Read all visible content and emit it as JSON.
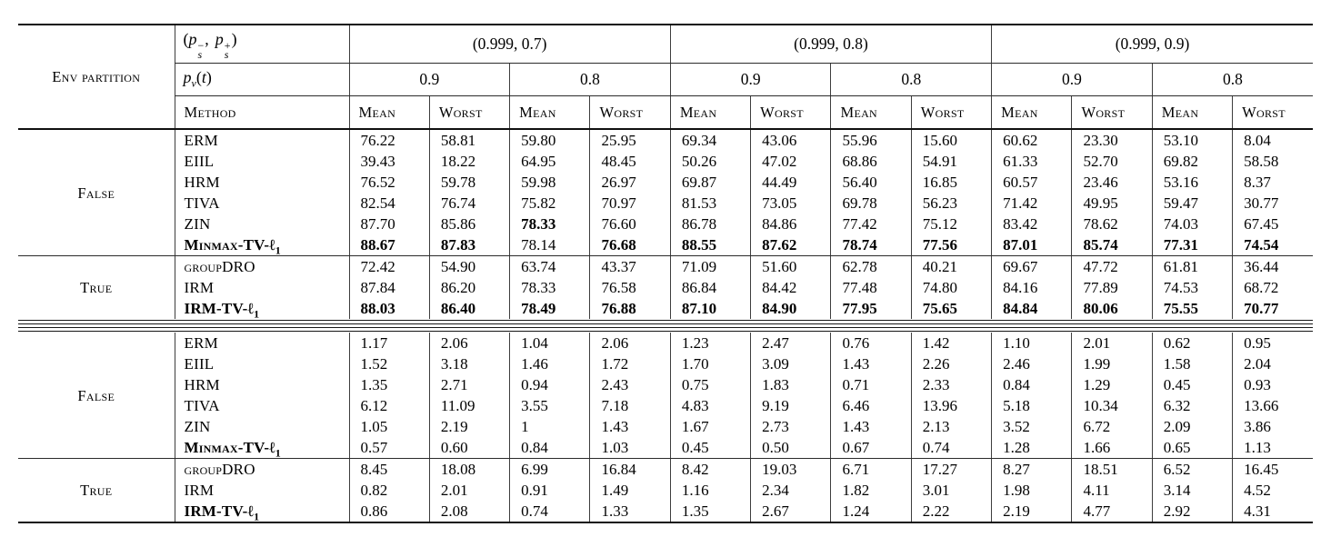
{
  "colors": {
    "text": "#000000",
    "rule": "#111111",
    "background": "#ffffff"
  },
  "table": {
    "header": {
      "env_partition_label": "Env partition",
      "ps": {
        "open": "(",
        "p": "p",
        "s": "s",
        "minus": "−",
        "plus": "+",
        "comma": ",",
        "close": ")"
      },
      "pv": {
        "p": "p",
        "v": "v",
        "open": "(",
        "t": "t",
        "close": ")"
      },
      "group_labels": [
        "(0.999, 0.7)",
        "(0.999, 0.8)",
        "(0.999, 0.9)"
      ],
      "pv_values": [
        "0.9",
        "0.8",
        "0.9",
        "0.8",
        "0.9",
        "0.8"
      ],
      "method_label": "Method",
      "metrics": [
        "Mean",
        "Worst",
        "Mean",
        "Worst",
        "Mean",
        "Worst",
        "Mean",
        "Worst",
        "Mean",
        "Worst",
        "Mean",
        "Worst"
      ]
    },
    "sections": [
      {
        "name": "mean-worst-accuracy",
        "blocks": [
          {
            "partition": "False",
            "rows": [
              {
                "method": "ERM",
                "bold_method": false,
                "values": [
                  "76.22",
                  "58.81",
                  "59.80",
                  "25.95",
                  "69.34",
                  "43.06",
                  "55.96",
                  "15.60",
                  "60.62",
                  "23.30",
                  "53.10",
                  "8.04"
                ],
                "bold": []
              },
              {
                "method": "EIIL",
                "bold_method": false,
                "values": [
                  "39.43",
                  "18.22",
                  "64.95",
                  "48.45",
                  "50.26",
                  "47.02",
                  "68.86",
                  "54.91",
                  "61.33",
                  "52.70",
                  "69.82",
                  "58.58"
                ],
                "bold": []
              },
              {
                "method": "HRM",
                "bold_method": false,
                "values": [
                  "76.52",
                  "59.78",
                  "59.98",
                  "26.97",
                  "69.87",
                  "44.49",
                  "56.40",
                  "16.85",
                  "60.57",
                  "23.46",
                  "53.16",
                  "8.37"
                ],
                "bold": []
              },
              {
                "method": "TIVA",
                "bold_method": false,
                "values": [
                  "82.54",
                  "76.74",
                  "75.82",
                  "70.97",
                  "81.53",
                  "73.05",
                  "69.78",
                  "56.23",
                  "71.42",
                  "49.95",
                  "59.47",
                  "30.77"
                ],
                "bold": []
              },
              {
                "method": "ZIN",
                "bold_method": false,
                "values": [
                  "87.70",
                  "85.86",
                  "78.33",
                  "76.60",
                  "86.78",
                  "84.86",
                  "77.42",
                  "75.12",
                  "83.42",
                  "78.62",
                  "74.03",
                  "67.45"
                ],
                "bold": [
                  2
                ]
              },
              {
                "method": "Minmax-TV-ℓ1",
                "bold_method": true,
                "values": [
                  "88.67",
                  "87.83",
                  "78.14",
                  "76.68",
                  "88.55",
                  "87.62",
                  "78.74",
                  "77.56",
                  "87.01",
                  "85.74",
                  "77.31",
                  "74.54"
                ],
                "bold": [
                  0,
                  1,
                  3,
                  4,
                  5,
                  6,
                  7,
                  8,
                  9,
                  10,
                  11
                ]
              }
            ]
          },
          {
            "partition": "True",
            "rows": [
              {
                "method": "groupDRO",
                "bold_method": false,
                "values": [
                  "72.42",
                  "54.90",
                  "63.74",
                  "43.37",
                  "71.09",
                  "51.60",
                  "62.78",
                  "40.21",
                  "69.67",
                  "47.72",
                  "61.81",
                  "36.44"
                ],
                "bold": []
              },
              {
                "method": "IRM",
                "bold_method": false,
                "values": [
                  "87.84",
                  "86.20",
                  "78.33",
                  "76.58",
                  "86.84",
                  "84.42",
                  "77.48",
                  "74.80",
                  "84.16",
                  "77.89",
                  "74.53",
                  "68.72"
                ],
                "bold": []
              },
              {
                "method": "IRM-TV-ℓ1",
                "bold_method": true,
                "values": [
                  "88.03",
                  "86.40",
                  "78.49",
                  "76.88",
                  "87.10",
                  "84.90",
                  "77.95",
                  "75.65",
                  "84.84",
                  "80.06",
                  "75.55",
                  "70.77"
                ],
                "bold": [
                  0,
                  1,
                  2,
                  3,
                  4,
                  5,
                  6,
                  7,
                  8,
                  9,
                  10,
                  11
                ]
              }
            ]
          }
        ]
      },
      {
        "name": "std-deviation",
        "blocks": [
          {
            "partition": "False",
            "rows": [
              {
                "method": "ERM",
                "bold_method": false,
                "values": [
                  "1.17",
                  "2.06",
                  "1.04",
                  "2.06",
                  "1.23",
                  "2.47",
                  "0.76",
                  "1.42",
                  "1.10",
                  "2.01",
                  "0.62",
                  "0.95"
                ],
                "bold": []
              },
              {
                "method": "EIIL",
                "bold_method": false,
                "values": [
                  "1.52",
                  "3.18",
                  "1.46",
                  "1.72",
                  "1.70",
                  "3.09",
                  "1.43",
                  "2.26",
                  "2.46",
                  "1.99",
                  "1.58",
                  "2.04"
                ],
                "bold": []
              },
              {
                "method": "HRM",
                "bold_method": false,
                "values": [
                  "1.35",
                  "2.71",
                  "0.94",
                  "2.43",
                  "0.75",
                  "1.83",
                  "0.71",
                  "2.33",
                  "0.84",
                  "1.29",
                  "0.45",
                  "0.93"
                ],
                "bold": []
              },
              {
                "method": "TIVA",
                "bold_method": false,
                "values": [
                  "6.12",
                  "11.09",
                  "3.55",
                  "7.18",
                  "4.83",
                  "9.19",
                  "6.46",
                  "13.96",
                  "5.18",
                  "10.34",
                  "6.32",
                  "13.66"
                ],
                "bold": []
              },
              {
                "method": "ZIN",
                "bold_method": false,
                "values": [
                  "1.05",
                  "2.19",
                  "1",
                  "1.43",
                  "1.67",
                  "2.73",
                  "1.43",
                  "2.13",
                  "3.52",
                  "6.72",
                  "2.09",
                  "3.86"
                ],
                "bold": []
              },
              {
                "method": "Minmax-TV-ℓ1",
                "bold_method": true,
                "values": [
                  "0.57",
                  "0.60",
                  "0.84",
                  "1.03",
                  "0.45",
                  "0.50",
                  "0.67",
                  "0.74",
                  "1.28",
                  "1.66",
                  "0.65",
                  "1.13"
                ],
                "bold": []
              }
            ]
          },
          {
            "partition": "True",
            "rows": [
              {
                "method": "groupDRO",
                "bold_method": false,
                "values": [
                  "8.45",
                  "18.08",
                  "6.99",
                  "16.84",
                  "8.42",
                  "19.03",
                  "6.71",
                  "17.27",
                  "8.27",
                  "18.51",
                  "6.52",
                  "16.45"
                ],
                "bold": []
              },
              {
                "method": "IRM",
                "bold_method": false,
                "values": [
                  "0.82",
                  "2.01",
                  "0.91",
                  "1.49",
                  "1.16",
                  "2.34",
                  "1.82",
                  "3.01",
                  "1.98",
                  "4.11",
                  "3.14",
                  "4.52"
                ],
                "bold": []
              },
              {
                "method": "IRM-TV-ℓ1",
                "bold_method": true,
                "values": [
                  "0.86",
                  "2.08",
                  "0.74",
                  "1.33",
                  "1.35",
                  "2.67",
                  "1.24",
                  "2.22",
                  "2.19",
                  "4.77",
                  "2.92",
                  "4.31"
                ],
                "bold": []
              }
            ]
          }
        ]
      }
    ]
  }
}
